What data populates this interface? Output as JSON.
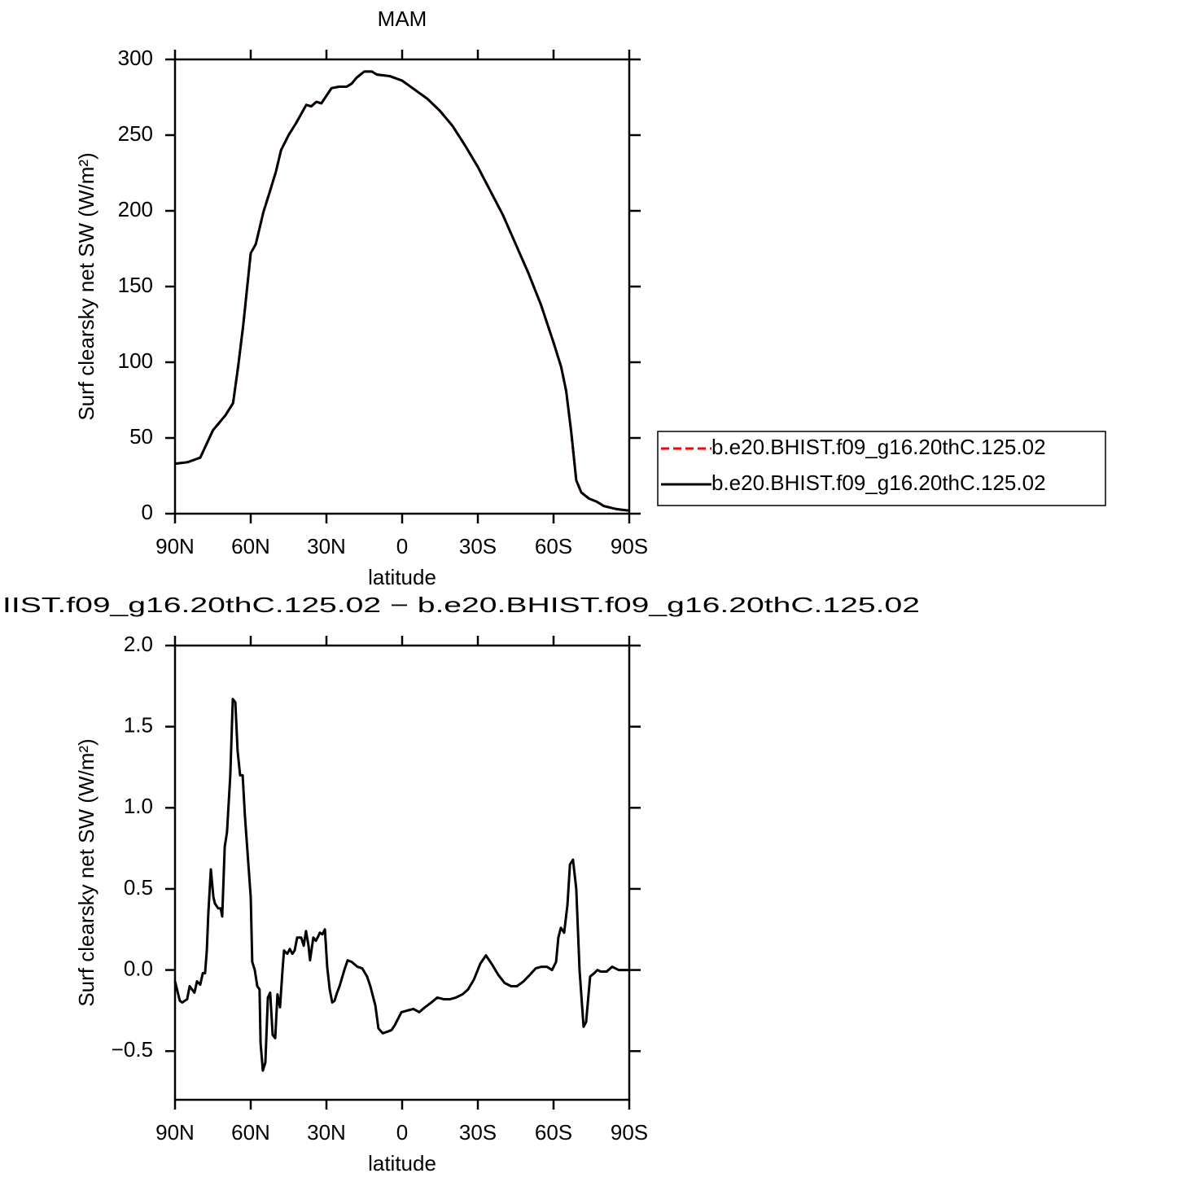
{
  "chart_data": [
    {
      "type": "line",
      "title": "MAM",
      "xlabel": "latitude",
      "ylabel": "Surf clearsky net SW (W/m²)",
      "x": [
        90,
        85,
        80,
        75,
        70,
        67,
        65,
        63,
        60,
        58,
        55,
        52,
        50,
        48,
        45,
        42,
        40,
        38,
        36,
        34,
        32,
        30,
        28,
        25,
        22,
        20,
        18,
        15,
        12,
        10,
        5,
        0,
        -5,
        -10,
        -15,
        -20,
        -25,
        -30,
        -35,
        -40,
        -45,
        -50,
        -55,
        -60,
        -63,
        -65,
        -67,
        -69,
        -71,
        -74,
        -77,
        -80,
        -85,
        -90
      ],
      "series": [
        {
          "name": "b.e20.BHIST.f09_g16.20thC.125.02",
          "color": "#ff0000",
          "linestyle": "dashed",
          "values": [
            33,
            34,
            37,
            55,
            65,
            73,
            97,
            124,
            172,
            178,
            199,
            215,
            226,
            240,
            250,
            258,
            264,
            270,
            269,
            272,
            271,
            276,
            281,
            282,
            282,
            284,
            288,
            292,
            292,
            290,
            289,
            286,
            280,
            274,
            266,
            256,
            243,
            229,
            213,
            197,
            178,
            159,
            138,
            113,
            97,
            81,
            54,
            22,
            14,
            10,
            8,
            5,
            3,
            2
          ]
        },
        {
          "name": "b.e20.BHIST.f09_g16.20thC.125.02",
          "color": "#000000",
          "linestyle": "solid",
          "values": [
            33,
            34,
            37,
            55,
            65,
            73,
            97,
            124,
            172,
            178,
            199,
            215,
            226,
            240,
            250,
            258,
            264,
            270,
            269,
            272,
            271,
            276,
            281,
            282,
            282,
            284,
            288,
            292,
            292,
            290,
            289,
            286,
            280,
            274,
            266,
            256,
            243,
            229,
            213,
            197,
            178,
            159,
            138,
            113,
            97,
            81,
            54,
            22,
            14,
            10,
            8,
            5,
            3,
            2
          ]
        }
      ],
      "xlim": [
        90,
        -90
      ],
      "xticks": [
        {
          "value": 90,
          "label": "90N"
        },
        {
          "value": 60,
          "label": "60N"
        },
        {
          "value": 30,
          "label": "30N"
        },
        0,
        {
          "value": -30,
          "label": "30S"
        },
        {
          "value": -60,
          "label": "60S"
        },
        {
          "value": -90,
          "label": "90S"
        }
      ],
      "ylim": [
        0,
        300
      ],
      "yticks": [
        0,
        50,
        100,
        150,
        200,
        250,
        300
      ],
      "legend": "right"
    },
    {
      "type": "line",
      "title": "IIST.f09_g16.20thC.125.02 − b.e20.BHIST.f09_g16.20thC.125.02",
      "xlabel": "latitude",
      "ylabel": "Surf clearsky net SW (W/m²)",
      "x": [
        90,
        88.1,
        87.1,
        85.2,
        84.2,
        82.3,
        81.3,
        80,
        79,
        78.1,
        77.4,
        76.8,
        75.8,
        74.8,
        74.2,
        72.9,
        71.9,
        71.3,
        70.3,
        69.4,
        68.1,
        67.1,
        66.1,
        65.2,
        64.2,
        63.2,
        62.3,
        60,
        59.4,
        58.4,
        57.4,
        56.5,
        56.1,
        55.2,
        54.2,
        53.2,
        52.3,
        51.3,
        50.3,
        49.4,
        48.4,
        47.4,
        46.8,
        45.5,
        44.5,
        43.5,
        42.6,
        41.6,
        40,
        39,
        38.1,
        37.1,
        36.5,
        35.2,
        34.2,
        33.5,
        32.6,
        31.6,
        30.6,
        29.7,
        28.7,
        27.7,
        26.8,
        25.8,
        24.8,
        22.9,
        21.6,
        20,
        17.7,
        15.8,
        13.9,
        12.6,
        10.6,
        9.4,
        7.7,
        5.8,
        4.2,
        2.9,
        0.3,
        -2,
        -4.5,
        -6.8,
        -9,
        -11.6,
        -13.9,
        -16.5,
        -19,
        -21.3,
        -23.9,
        -26.1,
        -28.4,
        -31,
        -33.2,
        -35.8,
        -38.1,
        -40.6,
        -43.2,
        -45.5,
        -48.1,
        -50.6,
        -52.9,
        -55.2,
        -57.4,
        -59.4,
        -61,
        -61.9,
        -62.9,
        -64.2,
        -65.5,
        -66.5,
        -67.7,
        -69,
        -70.3,
        -71.9,
        -72.9,
        -74.5,
        -76.1,
        -77.4,
        -78.7,
        -81,
        -83.2,
        -85.8,
        -90
      ],
      "series": [
        {
          "color": "#000000",
          "linestyle": "solid",
          "values": [
            -0.07,
            -0.19,
            -0.2,
            -0.18,
            -0.1,
            -0.14,
            -0.07,
            -0.09,
            -0.02,
            -0.02,
            0.12,
            0.35,
            0.62,
            0.45,
            0.41,
            0.38,
            0.38,
            0.33,
            0.76,
            0.85,
            1.2,
            1.67,
            1.65,
            1.35,
            1.2,
            1.2,
            0.95,
            0.45,
            0.05,
            0,
            -0.1,
            -0.12,
            -0.45,
            -0.62,
            -0.57,
            -0.17,
            -0.14,
            -0.4,
            -0.42,
            -0.15,
            -0.23,
            0,
            0.12,
            0.1,
            0.13,
            0.1,
            0.12,
            0.2,
            0.2,
            0.15,
            0.24,
            0.15,
            0.06,
            0.2,
            0.18,
            0.2,
            0.23,
            0.22,
            0.25,
            0.02,
            -0.12,
            -0.2,
            -0.19,
            -0.14,
            -0.1,
            0,
            0.06,
            0.05,
            0.02,
            0.01,
            -0.04,
            -0.1,
            -0.22,
            -0.36,
            -0.39,
            -0.38,
            -0.37,
            -0.34,
            -0.26,
            -0.25,
            -0.24,
            -0.26,
            -0.23,
            -0.2,
            -0.17,
            -0.18,
            -0.18,
            -0.17,
            -0.15,
            -0.12,
            -0.06,
            0.04,
            0.09,
            0.03,
            -0.03,
            -0.08,
            -0.1,
            -0.1,
            -0.07,
            -0.03,
            0.01,
            0.02,
            0.02,
            0.0,
            0.05,
            0.2,
            0.26,
            0.23,
            0.4,
            0.65,
            0.68,
            0.5,
            0.0,
            -0.35,
            -0.32,
            -0.04,
            -0.02,
            0.0,
            -0.01,
            -0.01,
            0.02,
            0.0,
            0.0
          ]
        }
      ],
      "xlim": [
        90,
        -90
      ],
      "xticks": [
        {
          "value": 90,
          "label": "90N"
        },
        {
          "value": 60,
          "label": "60N"
        },
        {
          "value": 30,
          "label": "30N"
        },
        0,
        {
          "value": -30,
          "label": "30S"
        },
        {
          "value": -60,
          "label": "60S"
        },
        {
          "value": -90,
          "label": "90S"
        }
      ],
      "ylim": [
        -0.8,
        2.0
      ],
      "yticks": [
        {
          "value": 2,
          "label": "2.0"
        },
        1.5,
        {
          "value": 1,
          "label": "1.0"
        },
        0.5,
        {
          "value": 0,
          "label": "0.0"
        },
        {
          "value": -0.5,
          "label": "−0.5"
        }
      ]
    }
  ]
}
